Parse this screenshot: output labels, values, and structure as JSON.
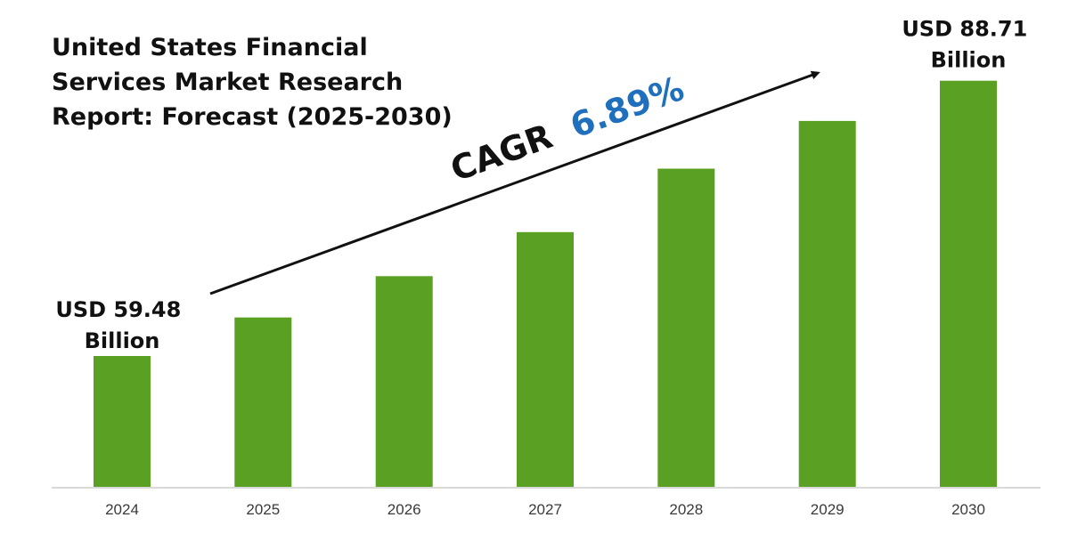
{
  "chart_data": {
    "type": "bar",
    "title_lines": [
      "United States Financial",
      "Services Market Research",
      "Report: Forecast (2025-2030)"
    ],
    "categories": [
      "2024",
      "2025",
      "2026",
      "2027",
      "2028",
      "2029",
      "2030"
    ],
    "values": [
      59.48,
      63.58,
      67.96,
      72.64,
      79.37,
      84.44,
      88.71
    ],
    "unit": "USD Billion",
    "ylim": [
      45.5,
      93.5
    ],
    "grid": false,
    "bar_color": "#5aa123",
    "baseline_color": "#d9d9d9",
    "data_labels": [
      {
        "category": "2024",
        "lines": [
          "USD 59.48",
          "Billion"
        ]
      },
      {
        "category": "2030",
        "lines": [
          "USD 88.71",
          "Billion"
        ]
      }
    ],
    "annotation": {
      "label": "CAGR",
      "value": "6.89%",
      "label_color": "#111111",
      "value_color": "#1f6fbd",
      "arrow": "up-right"
    }
  }
}
